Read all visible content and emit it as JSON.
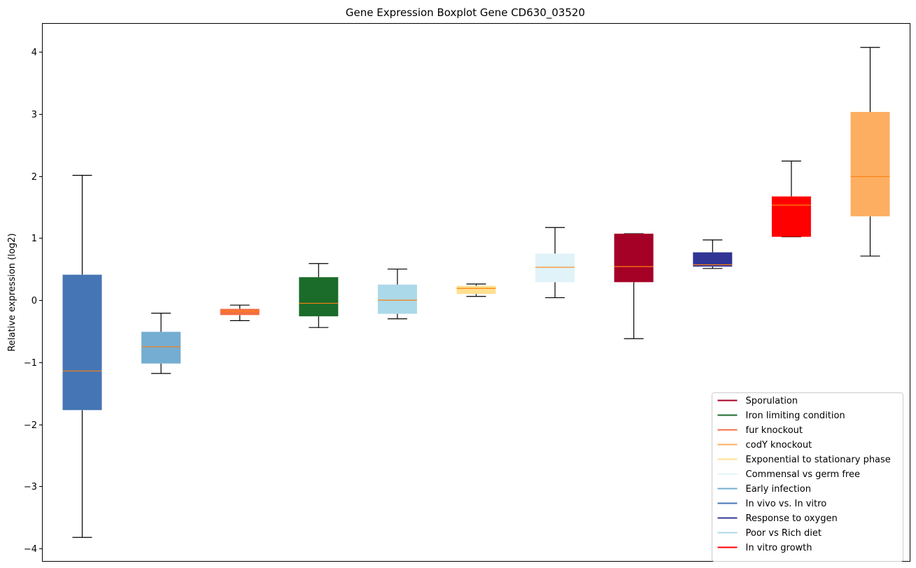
{
  "chart_data": {
    "type": "boxplot",
    "title": "Gene Expression Boxplot Gene CD630_03520",
    "xlabel": "",
    "ylabel": "Relative expression (log2)",
    "ylim": [
      -4.2,
      4.45
    ],
    "yticks": [
      -4,
      -3,
      -2,
      -1,
      0,
      1,
      2,
      3,
      4
    ],
    "ytick_labels": [
      "−4",
      "−3",
      "−2",
      "−1",
      "0",
      "1",
      "2",
      "3",
      "4"
    ],
    "grid": false,
    "legend_position": "bottom-right",
    "median_color": "#ff7f0e",
    "boxes": [
      {
        "color": "#4575b4",
        "whislo": -3.82,
        "q1": -1.77,
        "med": -1.14,
        "q3": 0.41,
        "whishi": 2.01
      },
      {
        "color": "#74add1",
        "whislo": -1.18,
        "q1": -1.02,
        "med": -0.75,
        "q3": -0.51,
        "whishi": -0.21
      },
      {
        "color": "#f46d43",
        "whislo": -0.33,
        "q1": -0.24,
        "med": -0.18,
        "q3": -0.14,
        "whishi": -0.08
      },
      {
        "color": "#1b6b2a",
        "whislo": -0.44,
        "q1": -0.26,
        "med": -0.05,
        "q3": 0.37,
        "whishi": 0.59
      },
      {
        "color": "#abd9e9",
        "whislo": -0.3,
        "q1": -0.22,
        "med": 0.0,
        "q3": 0.25,
        "whishi": 0.5
      },
      {
        "color": "#fee090",
        "whislo": 0.06,
        "q1": 0.1,
        "med": 0.19,
        "q3": 0.23,
        "whishi": 0.26
      },
      {
        "color": "#e0f3f8",
        "whislo": 0.04,
        "q1": 0.29,
        "med": 0.53,
        "q3": 0.75,
        "whishi": 1.17
      },
      {
        "color": "#a50026",
        "whislo": -0.62,
        "q1": 0.29,
        "med": 0.54,
        "q3": 1.07,
        "whishi": 1.07
      },
      {
        "color": "#313695",
        "whislo": 0.51,
        "q1": 0.54,
        "med": 0.57,
        "q3": 0.77,
        "whishi": 0.97
      },
      {
        "color": "#ff0000",
        "whislo": 1.02,
        "q1": 1.02,
        "med": 1.53,
        "q3": 1.67,
        "whishi": 2.24
      },
      {
        "color": "#fdae61",
        "whislo": 0.71,
        "q1": 1.35,
        "med": 1.99,
        "q3": 3.03,
        "whishi": 4.07
      }
    ],
    "legend": [
      {
        "name": "Sporulation",
        "color": "#a50026"
      },
      {
        "name": "Iron limiting condition",
        "color": "#1b6b2a"
      },
      {
        "name": "fur knockout",
        "color": "#f46d43"
      },
      {
        "name": "codY knockout",
        "color": "#fdae61"
      },
      {
        "name": "Exponential to stationary phase",
        "color": "#fee090"
      },
      {
        "name": "Commensal vs germ free",
        "color": "#e0f3f8"
      },
      {
        "name": "Early infection",
        "color": "#74add1"
      },
      {
        "name": "In vivo vs. In vitro",
        "color": "#4575b4"
      },
      {
        "name": "Response to oxygen",
        "color": "#313695"
      },
      {
        "name": "Poor vs Rich diet",
        "color": "#abd9e9"
      },
      {
        "name": "In vitro growth",
        "color": "#ff0000"
      }
    ]
  }
}
